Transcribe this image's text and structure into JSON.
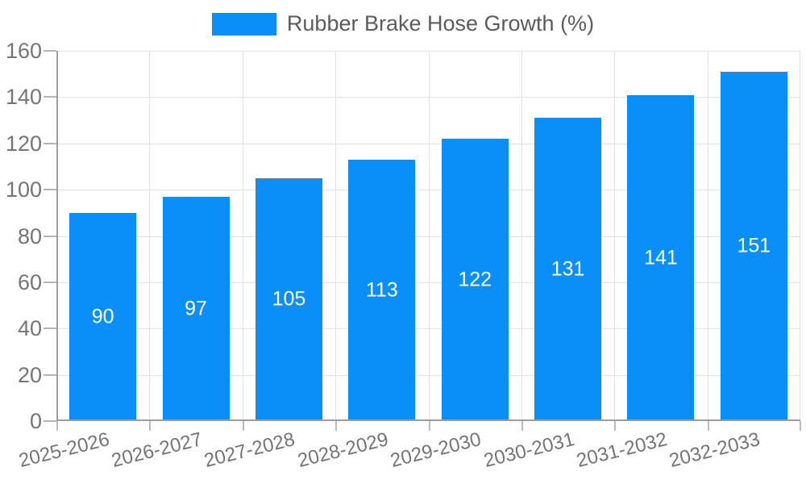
{
  "chart_data": {
    "type": "bar",
    "title": "",
    "legend": "Rubber Brake Hose Growth (%)",
    "legend_position": "top",
    "categories": [
      "2025-2026",
      "2026-2027",
      "2027-2028",
      "2028-2029",
      "2029-2030",
      "2030-2031",
      "2031-2032",
      "2032-2033"
    ],
    "values": [
      90,
      97,
      105,
      113,
      122,
      131,
      141,
      151
    ],
    "value_labels": [
      "90",
      "97",
      "105",
      "113",
      "122",
      "131",
      "141",
      "151"
    ],
    "ytick_labels": [
      "0",
      "20",
      "40",
      "60",
      "80",
      "100",
      "120",
      "140",
      "160"
    ],
    "ylim": [
      0,
      160
    ],
    "ytick_step": 20,
    "xlabel": "",
    "ylabel": "",
    "grid": true,
    "bar_color": "#0b8ef8",
    "value_label_color": "#ffffff"
  }
}
